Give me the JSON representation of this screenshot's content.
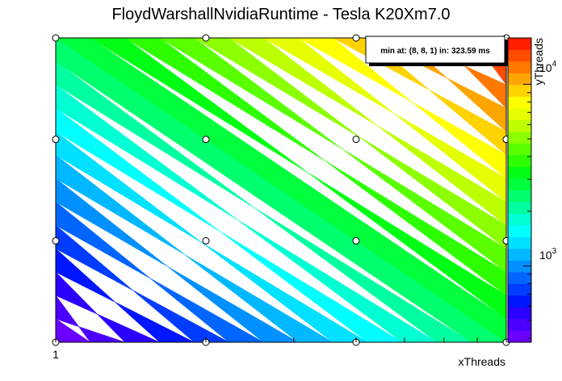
{
  "chart_data": {
    "type": "heatmap",
    "title": "FloydWarshallNvidiaRuntime - Tesla K20Xm7.0",
    "xlabel": "xThreads",
    "ylabel": "yThreads",
    "x_ticks": [
      "1"
    ],
    "z_ticks": [
      {
        "base": "10",
        "exp": "4",
        "value": 10000
      },
      {
        "base": "10",
        "exp": "3",
        "value": 1000
      }
    ],
    "zlim": [
      380,
      18000
    ],
    "z_log": true,
    "points": [
      {
        "x": 1,
        "y": 1
      },
      {
        "x": 2,
        "y": 1
      },
      {
        "x": 4,
        "y": 1
      },
      {
        "x": 8,
        "y": 1
      },
      {
        "x": 1,
        "y": 2
      },
      {
        "x": 2,
        "y": 2
      },
      {
        "x": 4,
        "y": 2
      },
      {
        "x": 8,
        "y": 2
      },
      {
        "x": 1,
        "y": 4
      },
      {
        "x": 2,
        "y": 4
      },
      {
        "x": 4,
        "y": 4
      },
      {
        "x": 8,
        "y": 4
      },
      {
        "x": 1,
        "y": 8
      },
      {
        "x": 2,
        "y": 8
      },
      {
        "x": 4,
        "y": 8
      },
      {
        "x": 8,
        "y": 8
      }
    ],
    "annotation": "min at: (8, 8, 1) in: 323.59 ms",
    "palette": [
      "#6a00ff",
      "#4b00ff",
      "#2b00ff",
      "#0016ff",
      "#003cff",
      "#0066ff",
      "#0090ff",
      "#00b8ff",
      "#00e0ff",
      "#00ffff",
      "#00ffd2",
      "#00ffa0",
      "#00ff6e",
      "#00ff3c",
      "#00ff14",
      "#2dff00",
      "#5aff00",
      "#8cff00",
      "#bdff00",
      "#e6ff00",
      "#ffff00",
      "#ffd200",
      "#ffa500",
      "#ff7800",
      "#ff4b00",
      "#ff1e00"
    ]
  }
}
